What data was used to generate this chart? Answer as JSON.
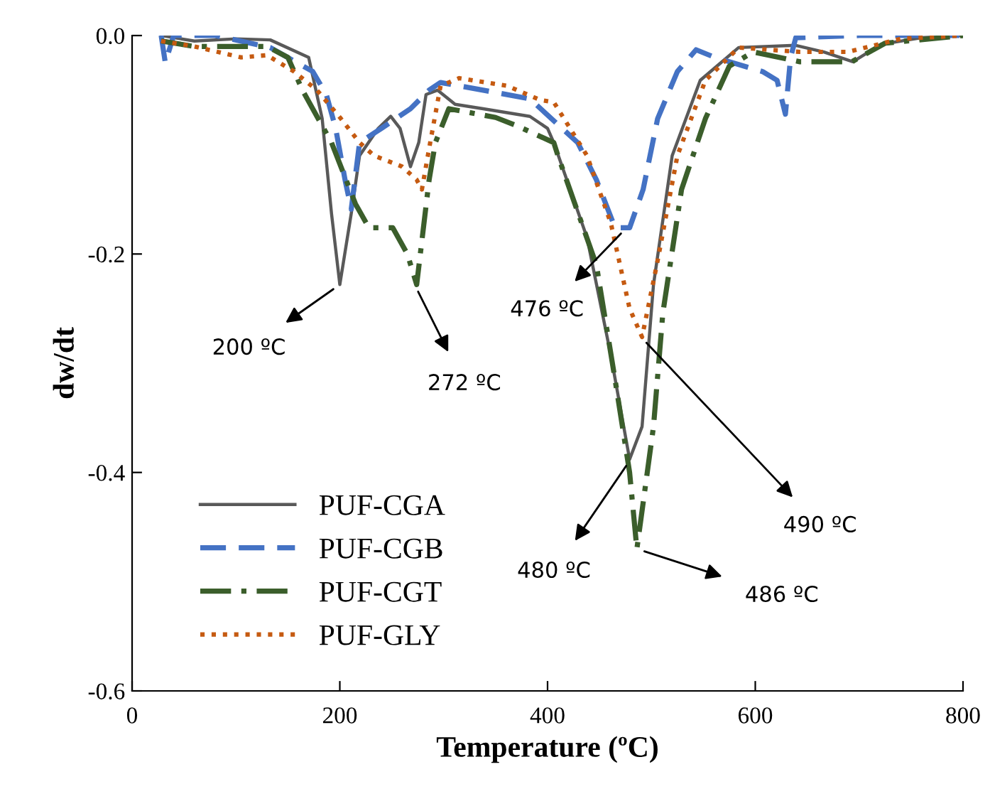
{
  "chart_data": {
    "type": "line",
    "xlabel": "Temperature (ºC)",
    "ylabel": "dw/dt",
    "xlim": [
      0,
      800
    ],
    "ylim": [
      -0.6,
      0
    ],
    "xticks": [
      0,
      200,
      400,
      600,
      800
    ],
    "yticks": [
      {
        "value": -0.6,
        "label": "-0.6"
      },
      {
        "value": -0.4,
        "label": "-0.4"
      },
      {
        "value": -0.2,
        "label": "-0.2"
      },
      {
        "value": 0,
        "label": "0.0"
      }
    ],
    "grid": false,
    "legend": "bottom left",
    "marker": "none",
    "series": [
      {
        "name": "PUF-CGA",
        "color": "#595959",
        "line_style": "solid",
        "x": [
          28,
          60,
          100,
          133,
          170,
          183,
          192,
          200,
          211,
          219,
          237,
          249,
          258,
          268,
          276,
          283,
          294,
          311,
          338,
          383,
          400,
          406,
          438,
          461,
          479,
          491,
          502,
          520,
          547,
          584,
          639,
          666,
          694,
          721,
          760,
          800
        ],
        "values": [
          0,
          -0.005,
          -0.003,
          -0.004,
          -0.02,
          -0.076,
          -0.163,
          -0.228,
          -0.163,
          -0.11,
          -0.085,
          -0.074,
          -0.085,
          -0.12,
          -0.098,
          -0.054,
          -0.05,
          -0.063,
          -0.067,
          -0.074,
          -0.085,
          -0.098,
          -0.185,
          -0.293,
          -0.388,
          -0.358,
          -0.228,
          -0.11,
          -0.041,
          -0.011,
          -0.009,
          -0.015,
          -0.024,
          -0.008,
          -0.002,
          0
        ]
      },
      {
        "name": "PUF-CGB",
        "color": "#4472c4",
        "line_style": "dashed",
        "x": [
          28,
          32,
          40,
          80,
          133,
          174,
          187,
          196,
          205,
          211,
          219,
          240,
          254,
          268,
          286,
          297,
          338,
          383,
          429,
          447,
          465,
          479,
          492,
          506,
          525,
          543,
          561,
          607,
          621,
          629,
          634,
          639,
          700,
          800
        ],
        "values": [
          0,
          -0.025,
          0,
          0,
          -0.011,
          -0.033,
          -0.054,
          -0.085,
          -0.132,
          -0.159,
          -0.098,
          -0.085,
          -0.076,
          -0.067,
          -0.05,
          -0.043,
          -0.05,
          -0.058,
          -0.098,
          -0.132,
          -0.176,
          -0.176,
          -0.141,
          -0.076,
          -0.033,
          -0.013,
          -0.02,
          -0.033,
          -0.041,
          -0.072,
          -0.02,
          -0.002,
          0,
          0
        ]
      },
      {
        "name": "PUF-CGT",
        "color": "#3b5e2b",
        "line_style": "dashdot",
        "x": [
          28,
          60,
          100,
          130,
          150,
          164,
          192,
          215,
          228,
          251,
          265,
          274,
          286,
          292,
          305,
          350,
          369,
          406,
          410,
          447,
          465,
          479,
          486,
          502,
          511,
          529,
          552,
          575,
          598,
          643,
          693,
          725,
          800
        ],
        "values": [
          -0.005,
          -0.01,
          -0.01,
          -0.01,
          -0.02,
          -0.05,
          -0.098,
          -0.154,
          -0.176,
          -0.176,
          -0.2,
          -0.228,
          -0.132,
          -0.098,
          -0.067,
          -0.075,
          -0.082,
          -0.098,
          -0.11,
          -0.21,
          -0.315,
          -0.4,
          -0.47,
          -0.358,
          -0.254,
          -0.141,
          -0.076,
          -0.028,
          -0.015,
          -0.024,
          -0.024,
          -0.007,
          0
        ]
      },
      {
        "name": "PUF-GLY",
        "color": "#c55a11",
        "line_style": "dotted",
        "x": [
          28,
          60,
          105,
          130,
          156,
          178,
          201,
          219,
          233,
          260,
          274,
          279,
          287,
          297,
          315,
          361,
          393,
          406,
          438,
          461,
          479,
          491,
          506,
          525,
          552,
          584,
          643,
          689,
          740,
          800
        ],
        "values": [
          -0.005,
          -0.01,
          -0.02,
          -0.018,
          -0.033,
          -0.05,
          -0.076,
          -0.098,
          -0.11,
          -0.12,
          -0.132,
          -0.141,
          -0.098,
          -0.046,
          -0.039,
          -0.046,
          -0.059,
          -0.061,
          -0.11,
          -0.172,
          -0.25,
          -0.276,
          -0.206,
          -0.11,
          -0.041,
          -0.011,
          -0.015,
          -0.015,
          -0.003,
          0
        ]
      }
    ],
    "annotations": [
      {
        "text": "200 ºC",
        "x": 200,
        "y": -0.228
      },
      {
        "text": "272 ºC",
        "x": 272,
        "y": -0.228
      },
      {
        "text": "476 ºC",
        "x": 476,
        "y": -0.176
      },
      {
        "text": "490 ºC",
        "x": 490,
        "y": -0.276
      },
      {
        "text": "480 ºC",
        "x": 480,
        "y": -0.388
      },
      {
        "text": "486 ºC",
        "x": 486,
        "y": -0.47
      }
    ]
  }
}
